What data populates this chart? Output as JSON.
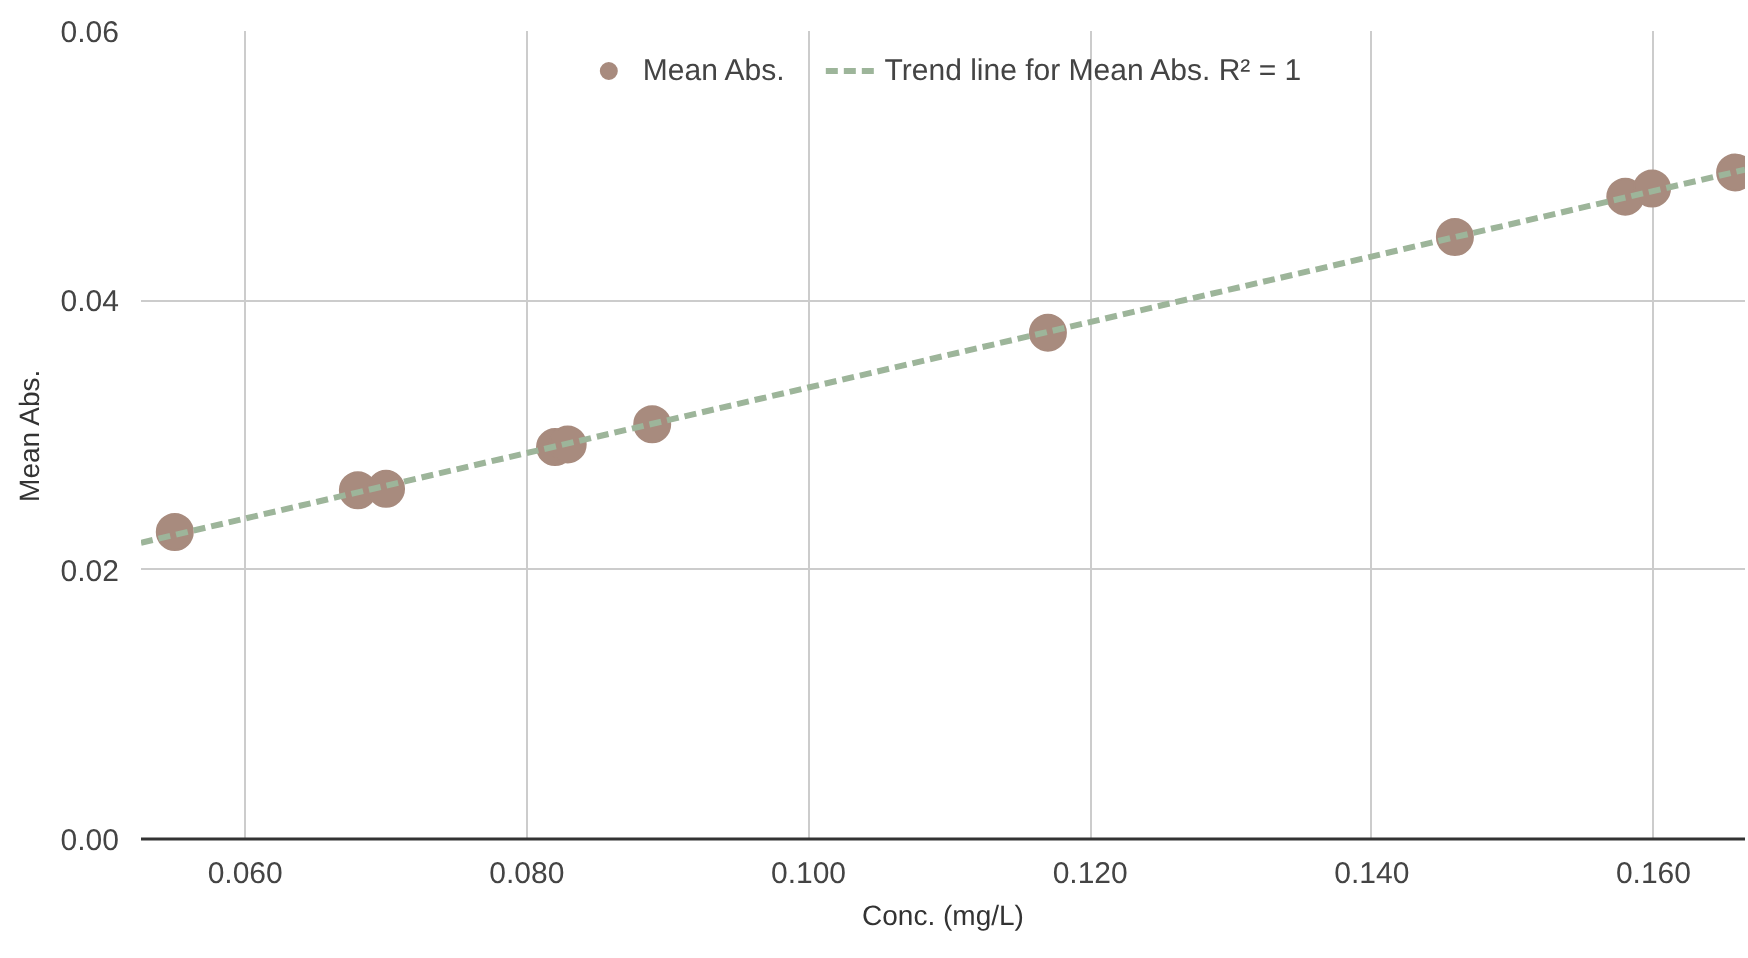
{
  "chart_data": {
    "type": "scatter",
    "xlabel": "Conc. (mg/L)",
    "ylabel": "Mean Abs.",
    "xlim": [
      0.0526,
      0.1665
    ],
    "ylim": [
      0,
      0.06
    ],
    "xticks": [
      {
        "value": 0.06,
        "label": "0.060"
      },
      {
        "value": 0.08,
        "label": "0.080"
      },
      {
        "value": 0.1,
        "label": "0.100"
      },
      {
        "value": 0.12,
        "label": "0.120"
      },
      {
        "value": 0.14,
        "label": "0.140"
      },
      {
        "value": 0.16,
        "label": "0.160"
      }
    ],
    "yticks": [
      {
        "value": 0,
        "label": "0.00"
      },
      {
        "value": 0.02,
        "label": "0.02"
      },
      {
        "value": 0.04,
        "label": "0.04"
      },
      {
        "value": 0.06,
        "label": "0.06"
      }
    ],
    "grid": true,
    "legend": "top",
    "marker": "circle",
    "series": [
      {
        "name": "Mean Abs.",
        "color": "#a88b7e",
        "x": [
          0.055,
          0.068,
          0.07,
          0.082,
          0.0829,
          0.0889,
          0.117,
          0.1459,
          0.158,
          0.1599,
          0.1658
        ],
        "values": [
          0.0228,
          0.0259,
          0.026,
          0.0291,
          0.0293,
          0.0308,
          0.0376,
          0.0447,
          0.0477,
          0.0483,
          0.0495
        ]
      },
      {
        "name": "Trend line for Mean Abs. R² = 1",
        "type": "line",
        "color": "#9db59a",
        "line_style": "dashed",
        "marker": "none",
        "x": [
          0.0526,
          0.1665
        ],
        "values": [
          0.022,
          0.0497
        ]
      }
    ]
  }
}
